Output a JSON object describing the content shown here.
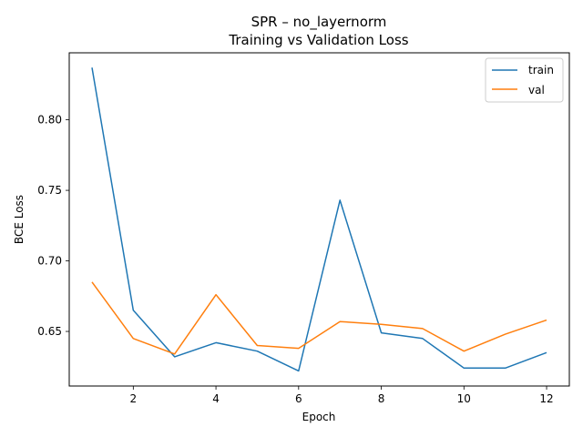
{
  "chart_data": {
    "type": "line",
    "title_line1": "SPR – no_layernorm",
    "title_line2": "Training vs Validation Loss",
    "xlabel": "Epoch",
    "ylabel": "BCE Loss",
    "xlim": [
      0.45,
      12.55
    ],
    "ylim": [
      0.6113,
      0.8475
    ],
    "xticks": [
      2,
      4,
      6,
      8,
      10,
      12
    ],
    "xtick_labels": [
      "2",
      "4",
      "6",
      "8",
      "10",
      "12"
    ],
    "yticks": [
      0.65,
      0.7,
      0.75,
      0.8
    ],
    "ytick_labels": [
      "0.65",
      "0.70",
      "0.75",
      "0.80"
    ],
    "grid": false,
    "legend_position": "top-right",
    "x": [
      1,
      2,
      3,
      4,
      5,
      6,
      7,
      8,
      9,
      10,
      11,
      12
    ],
    "series": [
      {
        "name": "train",
        "color": "#1f77b4",
        "values": [
          0.837,
          0.665,
          0.632,
          0.642,
          0.636,
          0.622,
          0.743,
          0.649,
          0.645,
          0.624,
          0.624,
          0.635
        ]
      },
      {
        "name": "val",
        "color": "#ff7f0e",
        "values": [
          0.685,
          0.645,
          0.634,
          0.676,
          0.64,
          0.638,
          0.657,
          0.655,
          0.652,
          0.636,
          0.648,
          0.658
        ]
      }
    ]
  }
}
